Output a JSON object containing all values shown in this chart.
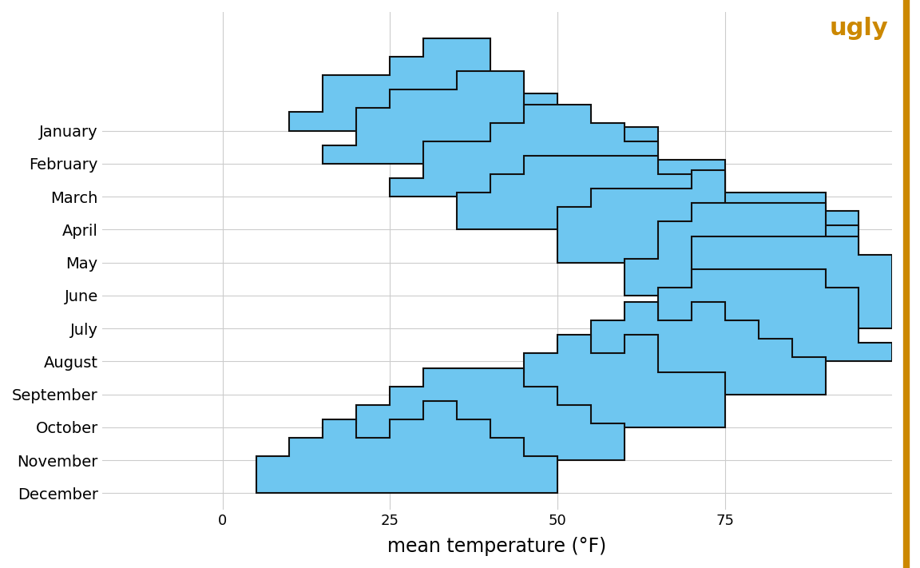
{
  "title": "ugly",
  "title_color": "#CC8800",
  "xlabel": "mean temperature (°F)",
  "months": [
    "January",
    "February",
    "March",
    "April",
    "May",
    "June",
    "July",
    "August",
    "September",
    "October",
    "November",
    "December"
  ],
  "hist_color": "#6EC6F0",
  "hist_edgecolor": "#111111",
  "background_color": "#ffffff",
  "grid_color": "#cccccc",
  "xlim": [
    -18,
    100
  ],
  "xticks": [
    0,
    25,
    50,
    75
  ],
  "bin_width": 5,
  "bar_scale": 2.8,
  "month_data": {
    "January": [
      10,
      15,
      16,
      18,
      20,
      22,
      24,
      25,
      27,
      28,
      29,
      30,
      31,
      32,
      33,
      34,
      35,
      36,
      37,
      38,
      39,
      40,
      42,
      44,
      46,
      48,
      50
    ],
    "February": [
      18,
      20,
      22,
      24,
      25,
      26,
      27,
      28,
      30,
      32,
      33,
      34,
      35,
      36,
      37,
      38,
      39,
      40,
      41,
      42,
      43,
      44,
      45,
      46,
      48,
      50,
      52,
      55,
      58,
      60,
      62
    ],
    "March": [
      28,
      30,
      32,
      33,
      35,
      36,
      38,
      40,
      42,
      43,
      44,
      45,
      46,
      47,
      48,
      49,
      50,
      51,
      52,
      53,
      54,
      55,
      56,
      57,
      58,
      60,
      62,
      64,
      65,
      68,
      70,
      72
    ],
    "April": [
      35,
      38,
      40,
      42,
      43,
      45,
      46,
      47,
      48,
      50,
      52,
      53,
      54,
      55,
      56,
      57,
      58,
      60,
      62,
      63,
      64,
      65,
      66,
      68,
      70,
      72,
      74,
      76,
      78,
      80,
      82,
      85,
      88,
      90
    ],
    "May": [
      50,
      52,
      54,
      55,
      56,
      57,
      58,
      60,
      62,
      63,
      64,
      65,
      66,
      67,
      68,
      70,
      71,
      72,
      73,
      74,
      75,
      76,
      78,
      80,
      82,
      83,
      85,
      87,
      88,
      90,
      92
    ],
    "June": [
      62,
      64,
      65,
      66,
      67,
      68,
      70,
      71,
      72,
      73,
      74,
      75,
      76,
      77,
      78,
      79,
      80,
      81,
      82,
      83,
      84,
      85,
      86,
      87,
      88,
      89,
      90,
      91,
      92
    ],
    "July": [
      68,
      70,
      71,
      72,
      73,
      74,
      75,
      76,
      77,
      78,
      79,
      80,
      81,
      82,
      83,
      84,
      85,
      86,
      87,
      88,
      89,
      90,
      91,
      92,
      93,
      94,
      95,
      96,
      97,
      98
    ],
    "August": [
      62,
      64,
      65,
      66,
      67,
      68,
      70,
      71,
      72,
      73,
      74,
      75,
      76,
      77,
      78,
      79,
      80,
      81,
      82,
      83,
      84,
      85,
      86,
      87,
      88,
      89,
      90,
      91,
      92,
      93,
      95
    ],
    "September": [
      50,
      52,
      54,
      55,
      56,
      57,
      58,
      60,
      61,
      62,
      63,
      64,
      65,
      66,
      67,
      68,
      70,
      71,
      72,
      73,
      74,
      75,
      76,
      77,
      78,
      80,
      82,
      84,
      85,
      87
    ],
    "October": [
      33,
      35,
      38,
      40,
      42,
      44,
      45,
      46,
      47,
      48,
      50,
      51,
      52,
      53,
      54,
      55,
      56,
      57,
      58,
      60,
      61,
      62,
      63,
      64,
      65,
      66,
      68,
      70,
      72,
      74
    ],
    "November": [
      15,
      18,
      20,
      22,
      24,
      25,
      26,
      27,
      28,
      30,
      31,
      32,
      33,
      34,
      35,
      36,
      37,
      38,
      39,
      40,
      41,
      42,
      43,
      44,
      45,
      46,
      47,
      48,
      50,
      52,
      54,
      56,
      58
    ],
    "December": [
      5,
      8,
      10,
      12,
      14,
      15,
      16,
      17,
      18,
      20,
      22,
      24,
      25,
      26,
      27,
      28,
      30,
      31,
      32,
      33,
      34,
      35,
      36,
      37,
      38,
      40,
      42,
      44,
      46,
      48
    ]
  }
}
